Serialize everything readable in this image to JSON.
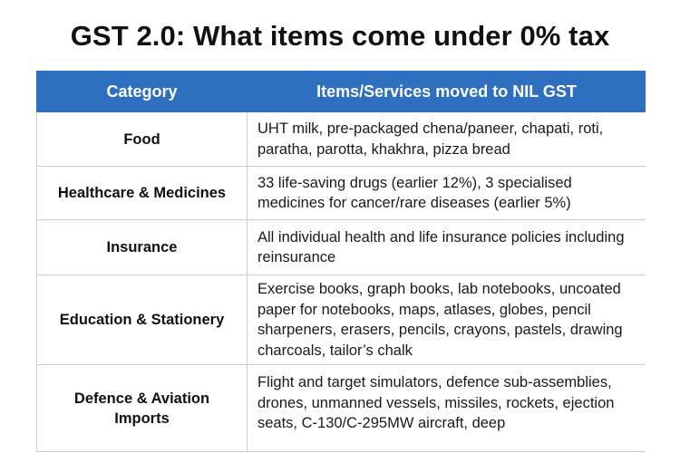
{
  "title": "GST 2.0: What items come under 0% tax",
  "table": {
    "headers": {
      "category": "Category",
      "items": "Items/Services moved to NIL GST"
    },
    "rows": [
      {
        "category": "Food",
        "items": "UHT milk, pre-packaged chena/paneer, chapati, roti, paratha, parotta, khakhra, pizza bread"
      },
      {
        "category": "Healthcare & Medicines",
        "items": "33 life-saving drugs (earlier 12%), 3 specialised medicines for cancer/rare diseases (earlier 5%)"
      },
      {
        "category": "Insurance",
        "items": "All individual health and life insurance policies including reinsurance"
      },
      {
        "category": "Education & Stationery",
        "items": "Exercise books, graph books, lab notebooks, uncoated paper for notebooks, maps, atlases, globes, pencil sharpeners, erasers, pencils, crayons, pastels, drawing charcoals, tailor’s chalk"
      },
      {
        "category": "Defence & Aviation Imports",
        "items": "Flight and target simulators, defence sub-assemblies, drones, unmanned vessels, missiles, rockets, ejection seats, C-130/C-295MW aircraft, deep"
      }
    ]
  },
  "colors": {
    "header_background": "#2f6fc0",
    "header_text": "#ffffff",
    "grid_line": "#c5cfdc"
  }
}
